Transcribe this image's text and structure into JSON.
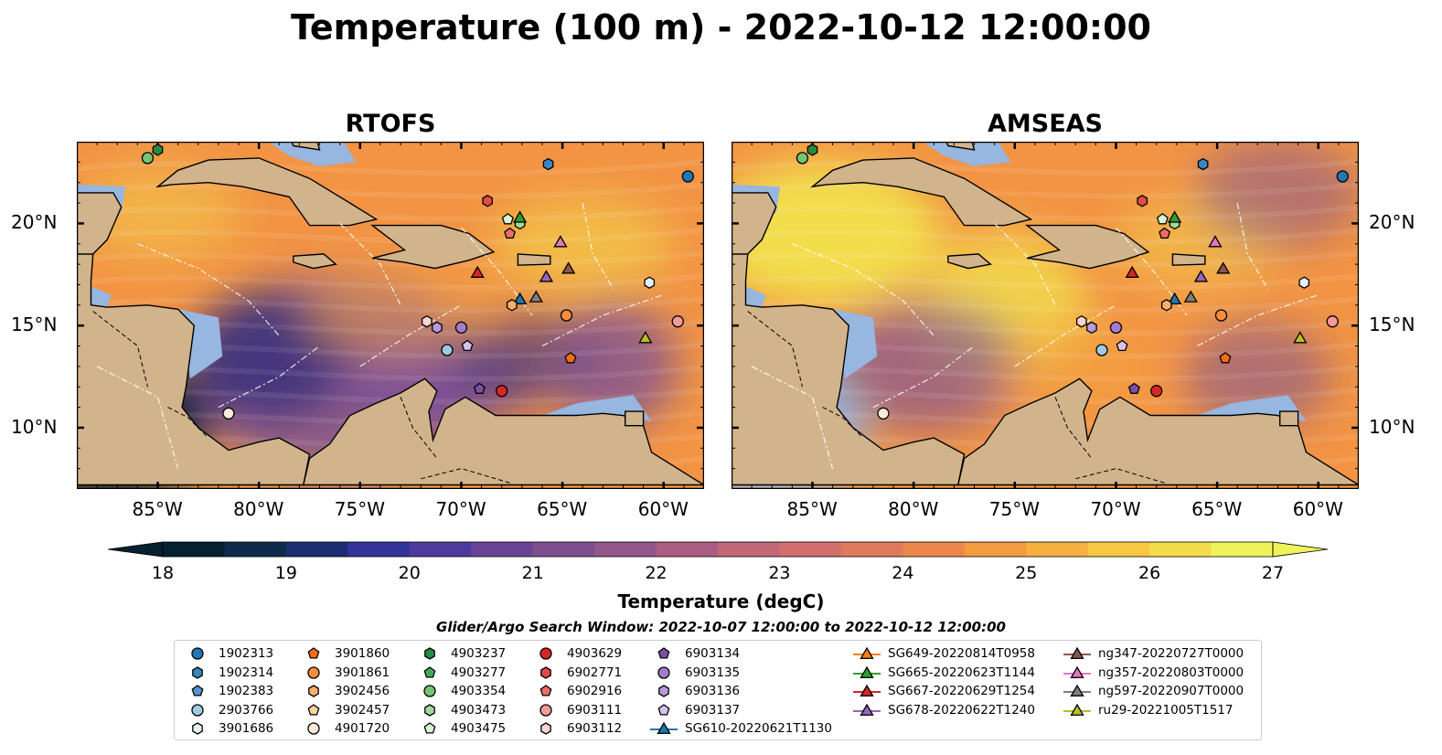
{
  "title": "Temperature (100 m) - 2022-10-12 12:00:00",
  "panels": [
    {
      "id": "rtofs",
      "title": "RTOFS"
    },
    {
      "id": "amseas",
      "title": "AMSEAS"
    }
  ],
  "map": {
    "lon_range": [
      -89,
      -58
    ],
    "lat_range": [
      7,
      24
    ],
    "lon_ticks": [
      "85°W",
      "80°W",
      "75°W",
      "70°W",
      "65°W",
      "60°W"
    ],
    "lon_tick_values": [
      -85,
      -80,
      -75,
      -70,
      -65,
      -60
    ],
    "lat_ticks": [
      "20°N",
      "15°N",
      "10°N"
    ],
    "lat_tick_values": [
      20,
      15,
      10
    ],
    "colors": {
      "land": "#d2b48c",
      "shallow": "#97b6e0",
      "warm": "#f4a340",
      "hot": "#f2ea4c",
      "cool": "#6f4a9e",
      "cold": "#2c2a7a"
    }
  },
  "colorbar": {
    "label": "Temperature (degC)",
    "ticks": [
      "18",
      "19",
      "20",
      "21",
      "22",
      "23",
      "24",
      "25",
      "26",
      "27"
    ],
    "range": [
      18,
      27
    ],
    "colors": [
      "#05202e",
      "#0f2a4a",
      "#1c2d72",
      "#33339a",
      "#4e3a9e",
      "#674496",
      "#7d4f8e",
      "#94568a",
      "#aa5e82",
      "#c06778",
      "#d26f6c",
      "#e17a5c",
      "#ec874b",
      "#f39b3f",
      "#f7b040",
      "#f8c744",
      "#f4dd4b",
      "#eef35a"
    ]
  },
  "legend": {
    "title": "Glider/Argo Search Window: 2022-10-07 12:00:00 to 2022-10-12 12:00:00",
    "columns": [
      [
        {
          "label": "1902313",
          "marker": "circle",
          "color": "#1f77b4"
        },
        {
          "label": "1902314",
          "marker": "hexagon",
          "color": "#3a87c0"
        },
        {
          "label": "1902383",
          "marker": "pentagon",
          "color": "#5595cf"
        },
        {
          "label": "2903766",
          "marker": "circle",
          "color": "#9ecae1"
        },
        {
          "label": "3901686",
          "marker": "hexagon",
          "color": "#e6f1fa"
        }
      ],
      [
        {
          "label": "3901860",
          "marker": "pentagon",
          "color": "#f46d0e"
        },
        {
          "label": "3901861",
          "marker": "circle",
          "color": "#fd8d3c"
        },
        {
          "label": "3902456",
          "marker": "hexagon",
          "color": "#fdae6b"
        },
        {
          "label": "3902457",
          "marker": "pentagon",
          "color": "#fdd0a2"
        },
        {
          "label": "4901720",
          "marker": "circle",
          "color": "#feeada"
        }
      ],
      [
        {
          "label": "4903237",
          "marker": "hexagon",
          "color": "#238b45"
        },
        {
          "label": "4903277",
          "marker": "pentagon",
          "color": "#41ab5d"
        },
        {
          "label": "4903354",
          "marker": "circle",
          "color": "#74c476"
        },
        {
          "label": "4903473",
          "marker": "hexagon",
          "color": "#a1d99b"
        },
        {
          "label": "4903475",
          "marker": "pentagon",
          "color": "#d9f5d0"
        }
      ],
      [
        {
          "label": "4903629",
          "marker": "circle",
          "color": "#d62728"
        },
        {
          "label": "6902771",
          "marker": "hexagon",
          "color": "#e34a4a"
        },
        {
          "label": "6902916",
          "marker": "pentagon",
          "color": "#ee6b6b"
        },
        {
          "label": "6903111",
          "marker": "circle",
          "color": "#f49a9a"
        },
        {
          "label": "6903112",
          "marker": "hexagon",
          "color": "#fcd3d3"
        }
      ],
      [
        {
          "label": "6903134",
          "marker": "pentagon",
          "color": "#7b4fa8"
        },
        {
          "label": "6903135",
          "marker": "circle",
          "color": "#a37ccc"
        },
        {
          "label": "6903136",
          "marker": "hexagon",
          "color": "#bb99dd"
        },
        {
          "label": "6903137",
          "marker": "pentagon",
          "color": "#d6c2ef"
        },
        {
          "label": "SG610-20220621T1130",
          "marker": "triangle-line",
          "color": "#1f77b4"
        }
      ],
      [
        {
          "label": "SG649-20220814T0958",
          "marker": "triangle-line",
          "color": "#ff7f0e"
        },
        {
          "label": "SG665-20220623T1144",
          "marker": "triangle-line",
          "color": "#2ca02c"
        },
        {
          "label": "SG667-20220629T1254",
          "marker": "triangle-line",
          "color": "#d62728"
        },
        {
          "label": "SG678-20220622T1240",
          "marker": "triangle-line",
          "color": "#9467bd"
        }
      ],
      [
        {
          "label": "ng347-20220727T0000",
          "marker": "triangle-line",
          "color": "#8c564b"
        },
        {
          "label": "ng357-20220803T0000",
          "marker": "triangle-line",
          "color": "#e377c2"
        },
        {
          "label": "ng597-20220907T0000",
          "marker": "triangle-line",
          "color": "#7f7f7f"
        },
        {
          "label": "ru29-20221005T1517",
          "marker": "triangle-line",
          "color": "#bcbd22"
        }
      ]
    ]
  },
  "markers": [
    {
      "name": "1902313",
      "lon": -58.8,
      "lat": 22.3,
      "marker": "circle",
      "color": "#1f77b4"
    },
    {
      "name": "1902314",
      "lon": -65.7,
      "lat": 22.9,
      "marker": "hexagon",
      "color": "#3a87c0"
    },
    {
      "name": "4903237",
      "lon": -85.0,
      "lat": 23.6,
      "marker": "hexagon",
      "color": "#238b45"
    },
    {
      "name": "4903354",
      "lon": -85.5,
      "lat": 23.2,
      "marker": "circle",
      "color": "#74c476"
    },
    {
      "name": "6902771",
      "lon": -68.7,
      "lat": 21.1,
      "marker": "hexagon",
      "color": "#e34a4a"
    },
    {
      "name": "4903475",
      "lon": -67.7,
      "lat": 20.2,
      "marker": "pentagon",
      "color": "#d9f5d0"
    },
    {
      "name": "4903473",
      "lon": -67.1,
      "lat": 20.0,
      "marker": "hexagon",
      "color": "#a1d99b"
    },
    {
      "name": "SG665-20220623T1144",
      "lon": -67.1,
      "lat": 20.3,
      "marker": "triangle",
      "color": "#2ca02c"
    },
    {
      "name": "6902916",
      "lon": -67.6,
      "lat": 19.5,
      "marker": "pentagon",
      "color": "#ee6b6b"
    },
    {
      "name": "ng357-20220803T0000",
      "lon": -65.1,
      "lat": 19.1,
      "marker": "triangle",
      "color": "#e377c2"
    },
    {
      "name": "SG667-20220629T1254",
      "lon": -69.2,
      "lat": 17.6,
      "marker": "triangle",
      "color": "#d62728"
    },
    {
      "name": "SG678-20220622T1240",
      "lon": -65.8,
      "lat": 17.4,
      "marker": "triangle",
      "color": "#9467bd"
    },
    {
      "name": "ng347-20220727T0000",
      "lon": -64.7,
      "lat": 17.8,
      "marker": "triangle",
      "color": "#8c564b"
    },
    {
      "name": "3901686",
      "lon": -60.7,
      "lat": 17.1,
      "marker": "hexagon",
      "color": "#e6f1fa"
    },
    {
      "name": "ng597-20220907T0000",
      "lon": -66.3,
      "lat": 16.4,
      "marker": "triangle",
      "color": "#7f7f7f"
    },
    {
      "name": "SG610-20220621T1130",
      "lon": -67.1,
      "lat": 16.3,
      "marker": "triangle",
      "color": "#1f77b4"
    },
    {
      "name": "3902456",
      "lon": -67.5,
      "lat": 16.0,
      "marker": "hexagon",
      "color": "#fdae6b"
    },
    {
      "name": "3901861",
      "lon": -64.8,
      "lat": 15.5,
      "marker": "circle",
      "color": "#fd8d3c"
    },
    {
      "name": "6903111",
      "lon": -59.3,
      "lat": 15.2,
      "marker": "circle",
      "color": "#f49a9a"
    },
    {
      "name": "ru29-20221005T1517",
      "lon": -60.9,
      "lat": 14.4,
      "marker": "triangle",
      "color": "#bcbd22"
    },
    {
      "name": "3901860",
      "lon": -64.6,
      "lat": 13.4,
      "marker": "pentagon",
      "color": "#f46d0e"
    },
    {
      "name": "6903112",
      "lon": -71.7,
      "lat": 15.2,
      "marker": "hexagon",
      "color": "#fcd3d3"
    },
    {
      "name": "6903136",
      "lon": -71.2,
      "lat": 14.9,
      "marker": "hexagon",
      "color": "#bb99dd"
    },
    {
      "name": "6903135",
      "lon": -70.0,
      "lat": 14.9,
      "marker": "circle",
      "color": "#a37ccc"
    },
    {
      "name": "6903137",
      "lon": -69.7,
      "lat": 14.0,
      "marker": "pentagon",
      "color": "#d6c2ef"
    },
    {
      "name": "2903766",
      "lon": -70.7,
      "lat": 13.8,
      "marker": "circle",
      "color": "#9ecae1"
    },
    {
      "name": "6903134",
      "lon": -69.1,
      "lat": 11.9,
      "marker": "pentagon",
      "color": "#7b4fa8"
    },
    {
      "name": "4903629",
      "lon": -68.0,
      "lat": 11.8,
      "marker": "circle",
      "color": "#d62728"
    },
    {
      "name": "4901720",
      "lon": -81.5,
      "lat": 10.7,
      "marker": "circle",
      "color": "#feeada"
    }
  ]
}
